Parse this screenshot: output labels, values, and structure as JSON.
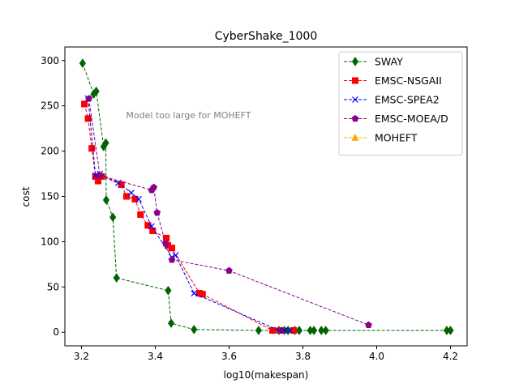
{
  "chart_data": {
    "type": "scatter",
    "title": "CyberShake_1000",
    "xlabel": "log10(makespan)",
    "ylabel": "cost",
    "xlim": [
      3.155,
      4.245
    ],
    "ylim": [
      -15,
      315
    ],
    "xticks": [
      {
        "value": 3.2,
        "label": "3.2"
      },
      {
        "value": 3.4,
        "label": "3.4"
      },
      {
        "value": 3.6,
        "label": "3.6"
      },
      {
        "value": 3.8,
        "label": "3.8"
      },
      {
        "value": 4.0,
        "label": "4.0"
      },
      {
        "value": 4.2,
        "label": "4.2"
      }
    ],
    "yticks": [
      {
        "value": 0,
        "label": "0"
      },
      {
        "value": 50,
        "label": "50"
      },
      {
        "value": 100,
        "label": "100"
      },
      {
        "value": 150,
        "label": "150"
      },
      {
        "value": 200,
        "label": "200"
      },
      {
        "value": 250,
        "label": "250"
      },
      {
        "value": 300,
        "label": "300"
      }
    ],
    "grid": false,
    "legend_position": "top-right",
    "annotation": {
      "text": "Model too large for MOHEFT",
      "x": 3.49,
      "y": 240
    },
    "series": [
      {
        "name": "SWAY",
        "color": "#006400",
        "marker": "diamond",
        "points": [
          [
            3.203,
            297
          ],
          [
            3.233,
            263
          ],
          [
            3.24,
            266
          ],
          [
            3.26,
            205
          ],
          [
            3.266,
            209
          ],
          [
            3.267,
            146
          ],
          [
            3.285,
            127
          ],
          [
            3.295,
            60
          ],
          [
            3.435,
            46
          ],
          [
            3.443,
            10
          ],
          [
            3.505,
            3
          ],
          [
            3.68,
            2
          ],
          [
            3.735,
            2
          ],
          [
            3.75,
            2
          ],
          [
            3.76,
            2
          ],
          [
            3.778,
            2
          ],
          [
            3.79,
            2
          ],
          [
            3.82,
            2
          ],
          [
            3.83,
            2
          ],
          [
            3.85,
            2
          ],
          [
            3.862,
            2
          ],
          [
            4.19,
            2
          ],
          [
            4.2,
            2
          ]
        ]
      },
      {
        "name": "EMSC-NSGAII",
        "color": "#ff0000",
        "marker": "square",
        "points": [
          [
            3.208,
            252
          ],
          [
            3.218,
            236
          ],
          [
            3.228,
            203
          ],
          [
            3.238,
            172
          ],
          [
            3.245,
            167
          ],
          [
            3.255,
            172
          ],
          [
            3.308,
            163
          ],
          [
            3.322,
            150
          ],
          [
            3.345,
            147
          ],
          [
            3.36,
            130
          ],
          [
            3.38,
            118
          ],
          [
            3.393,
            112
          ],
          [
            3.43,
            104
          ],
          [
            3.434,
            96
          ],
          [
            3.445,
            93
          ],
          [
            3.52,
            43
          ],
          [
            3.528,
            42
          ],
          [
            3.718,
            2
          ],
          [
            3.74,
            2
          ],
          [
            3.775,
            2
          ]
        ]
      },
      {
        "name": "EMSC-SPEA2",
        "color": "#0000ff",
        "marker": "x",
        "points": [
          [
            3.218,
            258
          ],
          [
            3.238,
            173
          ],
          [
            3.25,
            175
          ],
          [
            3.3,
            165
          ],
          [
            3.335,
            154
          ],
          [
            3.355,
            147
          ],
          [
            3.39,
            117
          ],
          [
            3.445,
            83
          ],
          [
            3.455,
            85
          ],
          [
            3.505,
            43
          ],
          [
            3.735,
            2
          ],
          [
            3.75,
            2
          ],
          [
            3.765,
            2
          ]
        ]
      },
      {
        "name": "EMSC-MOEA/D",
        "color": "#8b008b",
        "marker": "pentagon",
        "points": [
          [
            3.22,
            258
          ],
          [
            3.25,
            173
          ],
          [
            3.39,
            157
          ],
          [
            3.396,
            160
          ],
          [
            3.405,
            132
          ],
          [
            3.428,
            98
          ],
          [
            3.445,
            80
          ],
          [
            3.6,
            68
          ],
          [
            3.978,
            8
          ]
        ]
      },
      {
        "name": "MOHEFT",
        "color": "#ffa500",
        "marker": "triangle",
        "points": []
      }
    ]
  }
}
